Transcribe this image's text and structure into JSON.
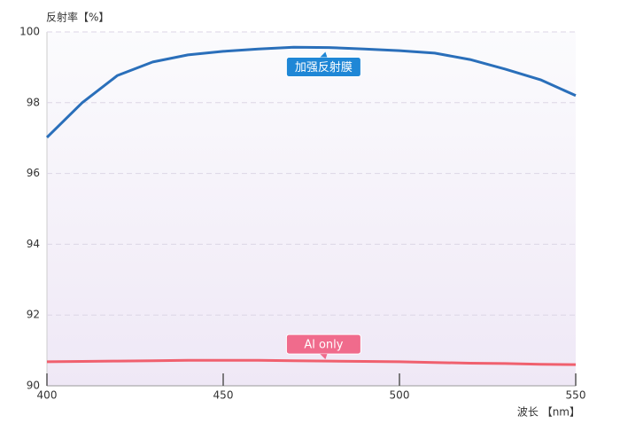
{
  "chart_data": {
    "type": "line",
    "y_label": "反射率【%】",
    "x_label": "波长 【nm】",
    "x": [
      400,
      410,
      420,
      430,
      440,
      450,
      460,
      470,
      480,
      490,
      500,
      510,
      520,
      530,
      540,
      550
    ],
    "series": [
      {
        "name": "加强反射膜",
        "color": "#2a6fba",
        "values": [
          97.02,
          98.0,
          98.77,
          99.15,
          99.35,
          99.45,
          99.52,
          99.57,
          99.56,
          99.52,
          99.47,
          99.4,
          99.22,
          98.95,
          98.65,
          98.2
        ]
      },
      {
        "name": "Al only",
        "color": "#f0606e",
        "values": [
          90.68,
          90.69,
          90.7,
          90.71,
          90.72,
          90.72,
          90.72,
          90.71,
          90.7,
          90.69,
          90.68,
          90.66,
          90.64,
          90.63,
          90.61,
          90.6
        ]
      }
    ],
    "xlim": [
      400,
      550
    ],
    "ylim": [
      90,
      100
    ],
    "xticks": [
      400,
      450,
      500,
      550
    ],
    "yticks": [
      90,
      92,
      94,
      96,
      98,
      100
    ],
    "grid": true
  }
}
